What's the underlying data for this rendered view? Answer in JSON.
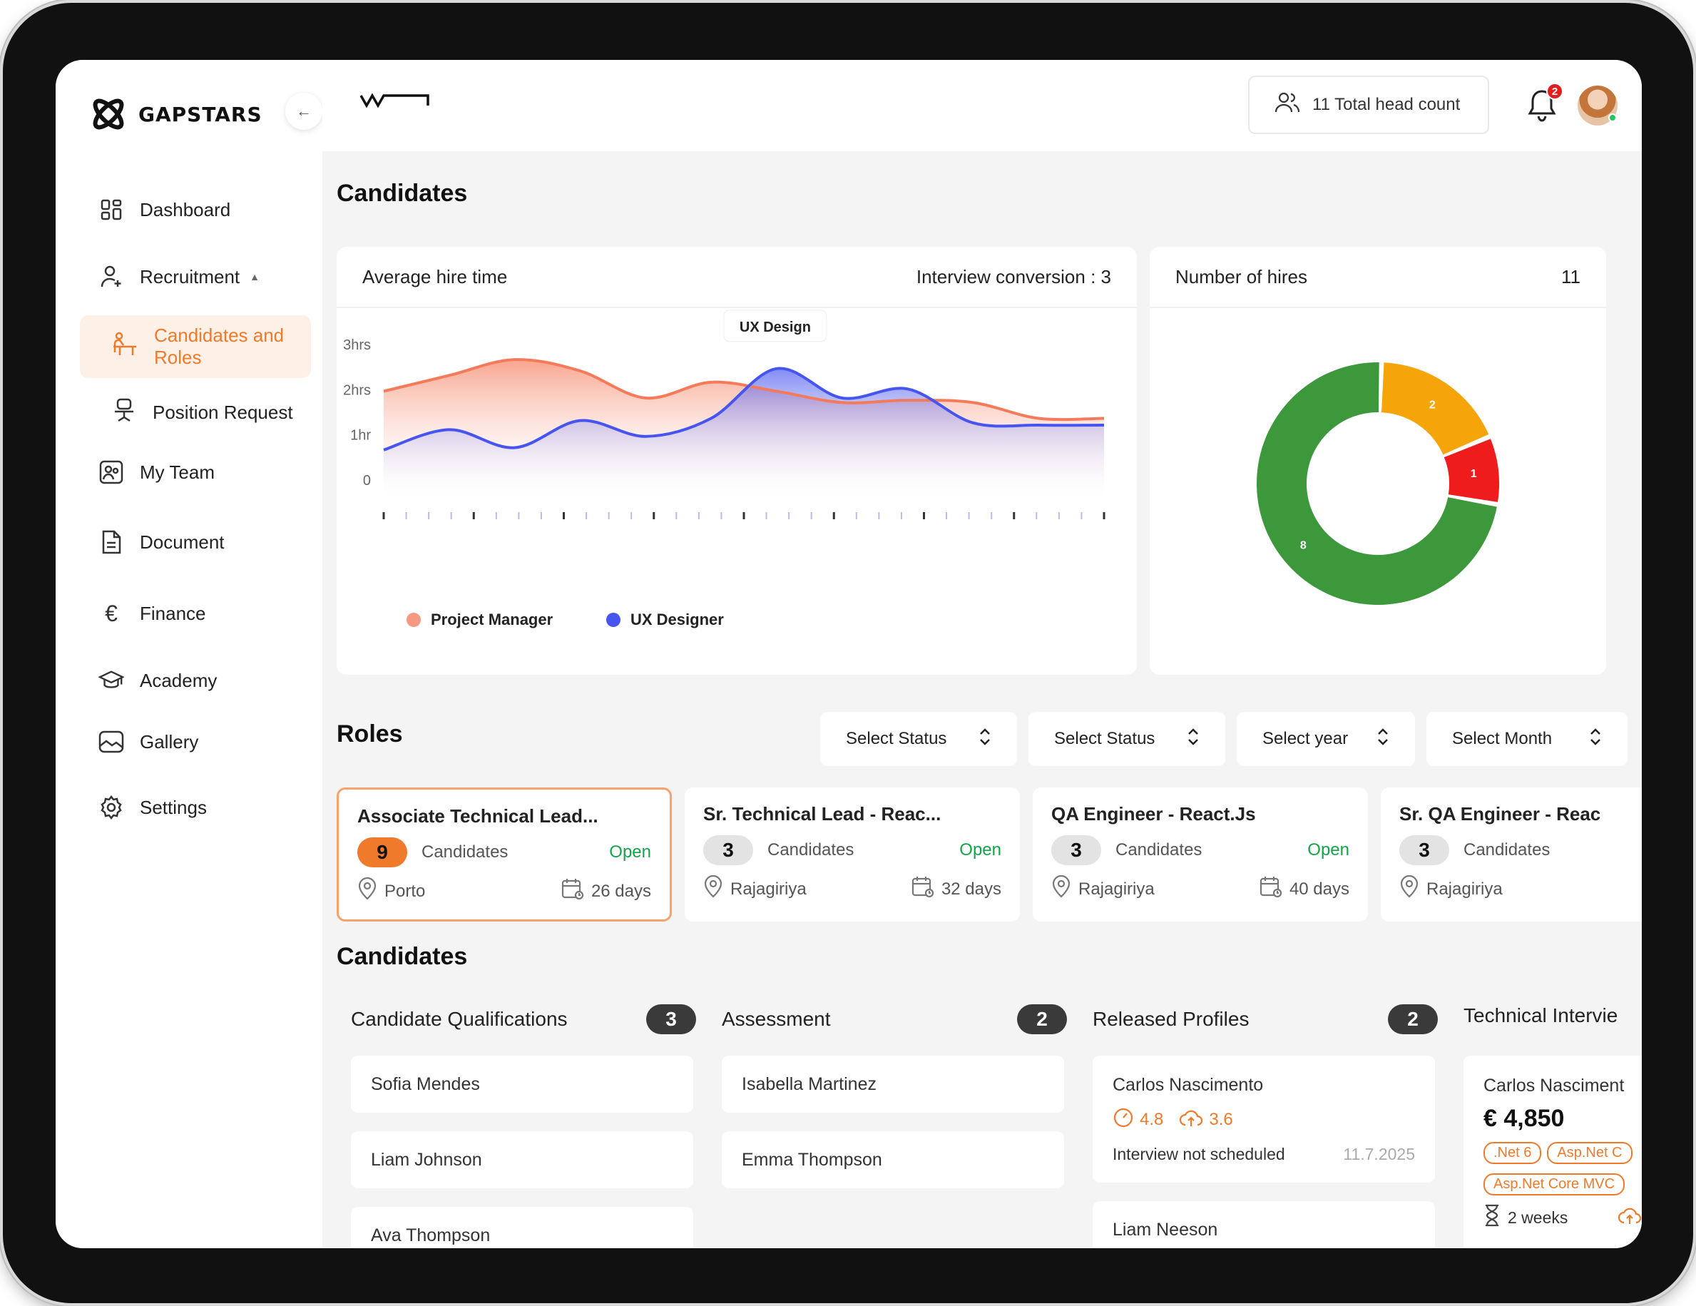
{
  "brand": {
    "name": "GAPSTARS"
  },
  "nav": {
    "dashboard": "Dashboard",
    "recruitment": "Recruitment",
    "candidates_roles": "Candidates and Roles",
    "position_request": "Position Request",
    "my_team": "My Team",
    "document": "Document",
    "finance": "Finance",
    "academy": "Academy",
    "gallery": "Gallery",
    "settings": "Settings"
  },
  "topbar": {
    "headcount": "11 Total head count",
    "notifications": "2"
  },
  "candidates_section": {
    "title": "Candidates"
  },
  "hire_time_card": {
    "title": "Average hire time",
    "conversion": "Interview conversion : 3",
    "tooltip": "UX Design"
  },
  "hires_card": {
    "title": "Number of hires",
    "value": "11"
  },
  "chart_data": [
    {
      "type": "area",
      "title": "Average hire time",
      "xlabel": "",
      "ylabel": "",
      "y_ticks": [
        "0",
        "1hr",
        "2hrs",
        "3hrs"
      ],
      "ylim": [
        0,
        3
      ],
      "x": [
        0,
        1,
        2,
        3,
        4,
        5,
        6,
        7,
        8,
        9,
        10,
        11
      ],
      "series": [
        {
          "name": "Project Manager",
          "color": "#f57a5a",
          "values": [
            1.95,
            2.3,
            2.65,
            2.4,
            1.8,
            2.15,
            1.95,
            1.7,
            1.75,
            1.7,
            1.35,
            1.35
          ]
        },
        {
          "name": "UX Designer",
          "color": "#4755f0",
          "values": [
            0.65,
            1.1,
            0.7,
            1.3,
            0.95,
            1.35,
            2.45,
            1.8,
            2.0,
            1.25,
            1.2,
            1.2
          ]
        }
      ],
      "legend": "bottom-left",
      "grid": false
    },
    {
      "type": "pie",
      "title": "Number of hires",
      "donut": true,
      "slices": [
        {
          "label": "2",
          "value": 2,
          "color": "#f5a40a"
        },
        {
          "label": "1",
          "value": 1,
          "color": "#ee1c1c"
        },
        {
          "label": "8",
          "value": 8,
          "color": "#3d983c"
        }
      ]
    }
  ],
  "roles": {
    "title": "Roles",
    "filters": [
      "Select Status",
      "Select Status",
      "Select year",
      "Select Month"
    ],
    "cards": [
      {
        "title": "Associate Technical Lead...",
        "count": "9",
        "candidates": "Candidates",
        "status": "Open",
        "location": "Porto",
        "duration": "26 days"
      },
      {
        "title": "Sr. Technical Lead - Reac...",
        "count": "3",
        "candidates": "Candidates",
        "status": "Open",
        "location": "Rajagiriya",
        "duration": "32 days"
      },
      {
        "title": "QA Engineer - React.Js",
        "count": "3",
        "candidates": "Candidates",
        "status": "Open",
        "location": "Rajagiriya",
        "duration": "40 days"
      },
      {
        "title": "Sr. QA Engineer - Reac",
        "count": "3",
        "candidates": "Candidates",
        "status": "",
        "location": "Rajagiriya",
        "duration": ""
      }
    ]
  },
  "pipeline": {
    "title": "Candidates",
    "columns": [
      {
        "name": "Candidate Qualifications",
        "count": "3",
        "items": [
          "Sofia Mendes",
          "Liam Johnson",
          "Ava Thompson"
        ]
      },
      {
        "name": "Assessment",
        "count": "2",
        "items": [
          "Isabella Martinez",
          "Emma Thompson"
        ]
      },
      {
        "name": "Released Profiles",
        "count": "2",
        "detail": {
          "name": "Carlos Nascimento",
          "score1": "4.8",
          "score2": "3.6",
          "status": "Interview not scheduled",
          "date": "11.7.2025"
        },
        "items": [
          "Liam Neeson"
        ]
      },
      {
        "name": "Technical Intervie",
        "detail": {
          "name": "Carlos Nasciment",
          "salary": "€ 4,850",
          "tags": [
            ".Net 6",
            "Asp.Net C",
            "Asp.Net Core MVC"
          ],
          "duration": "2 weeks"
        }
      }
    ]
  }
}
